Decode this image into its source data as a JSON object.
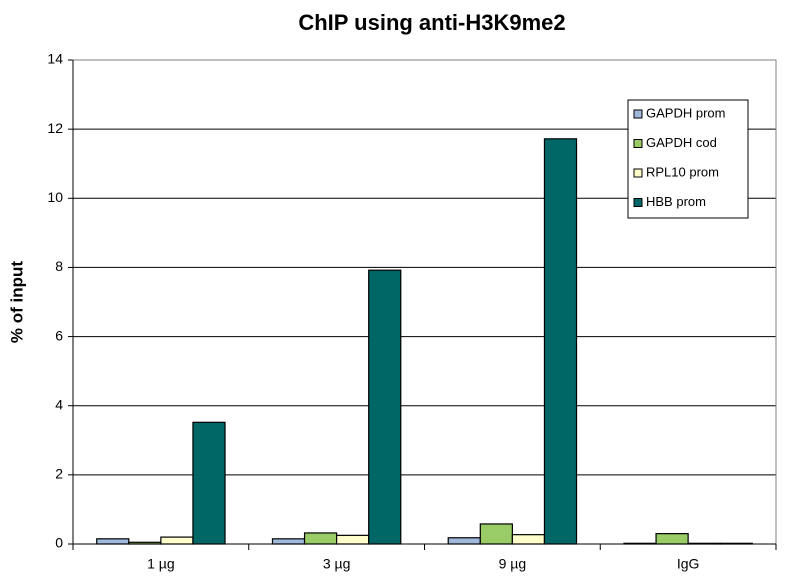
{
  "chart_data": {
    "type": "bar",
    "title": "ChIP using anti-H3K9me2",
    "y_label": "% of input",
    "categories": [
      "1 µg",
      "3 µg",
      "9 µg",
      "IgG"
    ],
    "series": [
      {
        "name": "GAPDH prom",
        "color": "#9fb8dc",
        "values": [
          0.15,
          0.15,
          0.18,
          0.02
        ]
      },
      {
        "name": "GAPDH cod",
        "color": "#99cc66",
        "values": [
          0.05,
          0.32,
          0.58,
          0.3
        ]
      },
      {
        "name": "RPL10 prom",
        "color": "#ffffcc",
        "values": [
          0.2,
          0.25,
          0.27,
          0.02
        ]
      },
      {
        "name": "HBB prom",
        "color": "#006666",
        "values": [
          3.52,
          7.92,
          11.72,
          0.02
        ]
      }
    ],
    "ylim": [
      0,
      14
    ],
    "yticks": [
      0,
      2,
      4,
      6,
      8,
      10,
      12,
      14
    ],
    "grid": true,
    "legend": "top-right"
  }
}
